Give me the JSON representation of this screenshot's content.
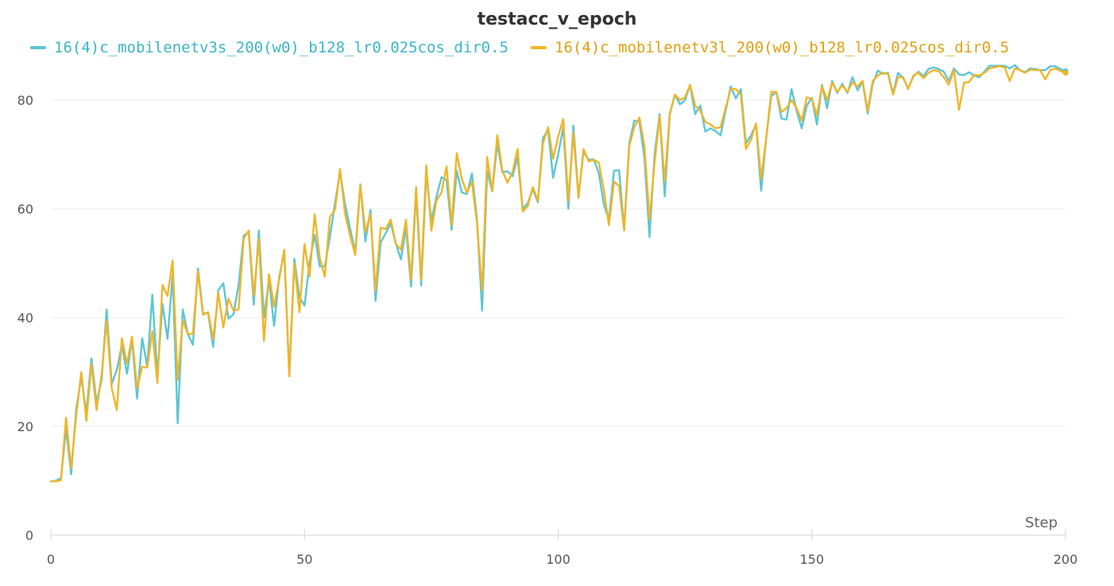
{
  "chart_data": {
    "type": "line",
    "title": "testacc_v_epoch",
    "xlabel": "Step",
    "ylabel": "",
    "xlim": [
      0,
      200
    ],
    "ylim": [
      0,
      87
    ],
    "x_ticks": [
      0,
      50,
      100,
      150,
      200
    ],
    "y_ticks": [
      0,
      20,
      40,
      60,
      80
    ],
    "grid": "horizontal",
    "legend_position": "top-left",
    "series": [
      {
        "name": "16(4)c_mobilenetv3s_200(w0)_b128_lr0.025cos_dir0.5",
        "color": "#5bc5d6",
        "values": [
          9.9,
          10.0,
          10.5,
          19.6,
          11.2,
          23.2,
          29.0,
          22.5,
          32.5,
          24.4,
          28.5,
          41.5,
          27.8,
          30.4,
          35.0,
          29.7,
          36.0,
          25.1,
          36.2,
          31.0,
          44.2,
          29.2,
          42.5,
          36.1,
          47.8,
          20.6,
          41.5,
          37.0,
          35.0,
          49.0,
          40.8,
          40.8,
          34.6,
          45.0,
          46.3,
          39.8,
          40.6,
          46.0,
          55.0,
          55.8,
          42.4,
          56.0,
          40.0,
          47.0,
          38.5,
          47.5,
          52.0,
          29.5,
          50.8,
          43.7,
          42.2,
          50.2,
          55.2,
          49.4,
          49.4,
          54.8,
          61.0,
          66.8,
          60.8,
          56.3,
          52.0,
          64.5,
          54.0,
          59.8,
          43.1,
          53.8,
          55.5,
          57.3,
          53.6,
          50.7,
          56.5,
          45.7,
          63.0,
          45.9,
          66.5,
          57.8,
          62.2,
          65.8,
          65.3,
          56.1,
          67.0,
          63.0,
          62.7,
          66.5,
          58.0,
          41.3,
          66.9,
          63.2,
          72.0,
          66.7,
          66.9,
          66.0,
          69.5,
          60.0,
          61.0,
          63.6,
          61.2,
          73.0,
          74.5,
          65.7,
          70.0,
          75.0,
          60.0,
          75.3,
          62.3,
          70.5,
          69.0,
          69.1,
          66.6,
          60.8,
          58.0,
          67.0,
          67.1,
          56.2,
          72.0,
          76.2,
          76.0,
          69.4,
          54.8,
          70.0,
          77.4,
          62.3,
          77.3,
          81.0,
          79.2,
          80.0,
          82.8,
          77.4,
          79.0,
          74.2,
          74.8,
          74.3,
          73.5,
          78.0,
          82.5,
          80.3,
          82.0,
          72.0,
          73.5,
          75.5,
          63.3,
          73.0,
          80.7,
          81.5,
          76.6,
          76.4,
          82.0,
          78.0,
          74.8,
          79.0,
          80.4,
          75.5,
          82.8,
          78.5,
          83.5,
          81.3,
          83.0,
          81.3,
          84.2,
          81.8,
          83.4,
          77.5,
          83.0,
          85.4,
          84.8,
          85.0,
          81.2,
          85.0,
          84.0,
          82.2,
          84.3,
          85.2,
          84.4,
          85.7,
          86.0,
          85.7,
          85.2,
          83.5,
          85.8,
          84.7,
          84.6,
          85.1,
          84.5,
          84.2,
          85.2,
          86.3,
          86.3,
          86.3,
          86.3,
          85.8,
          86.4,
          85.5,
          85.1,
          85.8,
          85.7,
          85.5,
          85.5,
          86.2,
          86.2,
          85.7,
          85.3
        ]
      },
      {
        "name": "16(4)c_mobilenetv3l_200(w0)_b128_lr0.025cos_dir0.5",
        "color": "#f0b528",
        "values": [
          9.9,
          9.9,
          10.1,
          21.6,
          12.3,
          22.0,
          30.0,
          21.0,
          31.5,
          23.0,
          29.5,
          39.5,
          27.0,
          23.0,
          36.2,
          31.5,
          36.5,
          27.0,
          31.0,
          30.8,
          37.5,
          28.0,
          46.0,
          44.0,
          50.5,
          28.5,
          39.5,
          37.0,
          37.0,
          48.5,
          40.5,
          41.0,
          36.0,
          44.5,
          38.2,
          43.5,
          41.3,
          41.5,
          54.5,
          56.0,
          44.0,
          54.5,
          35.7,
          48.0,
          42.0,
          47.0,
          52.5,
          29.2,
          50.0,
          41.0,
          53.5,
          47.5,
          59.0,
          51.0,
          47.5,
          58.5,
          59.8,
          67.3,
          59.0,
          55.0,
          51.5,
          64.3,
          55.7,
          59.0,
          45.0,
          56.5,
          56.3,
          58.0,
          53.5,
          52.5,
          58.0,
          47.0,
          64.0,
          47.0,
          68.0,
          56.0,
          61.5,
          63.0,
          67.8,
          57.0,
          70.2,
          65.5,
          63.0,
          65.0,
          57.3,
          45.0,
          69.5,
          63.2,
          73.5,
          67.0,
          64.8,
          66.8,
          71.0,
          59.5,
          60.5,
          64.0,
          61.5,
          72.0,
          75.0,
          69.2,
          73.3,
          76.5,
          61.5,
          74.0,
          62.0,
          71.0,
          68.7,
          69.0,
          68.5,
          63.5,
          57.0,
          65.0,
          64.2,
          56.0,
          71.5,
          75.0,
          76.8,
          71.5,
          58.0,
          68.5,
          77.0,
          65.0,
          77.5,
          81.0,
          80.0,
          80.5,
          82.8,
          79.0,
          78.0,
          76.0,
          75.5,
          74.8,
          75.0,
          78.5,
          82.0,
          82.0,
          81.0,
          71.0,
          72.7,
          75.7,
          65.5,
          73.0,
          81.5,
          81.5,
          77.8,
          78.5,
          80.0,
          78.5,
          76.2,
          80.5,
          80.2,
          77.2,
          82.5,
          80.0,
          83.2,
          81.5,
          82.7,
          81.5,
          83.2,
          82.5,
          83.5,
          78.0,
          83.5,
          84.5,
          85.0,
          84.8,
          81.0,
          84.2,
          84.2,
          82.0,
          84.5,
          85.0,
          84.0,
          85.0,
          85.5,
          85.3,
          84.2,
          82.8,
          85.5,
          78.2,
          83.2,
          83.3,
          84.6,
          84.5,
          85.0,
          85.8,
          86.0,
          86.2,
          86.0,
          83.5,
          85.8,
          85.5,
          85.0,
          85.6,
          85.5,
          85.5,
          83.8,
          85.5,
          85.8,
          85.3,
          85.0
        ]
      }
    ]
  }
}
